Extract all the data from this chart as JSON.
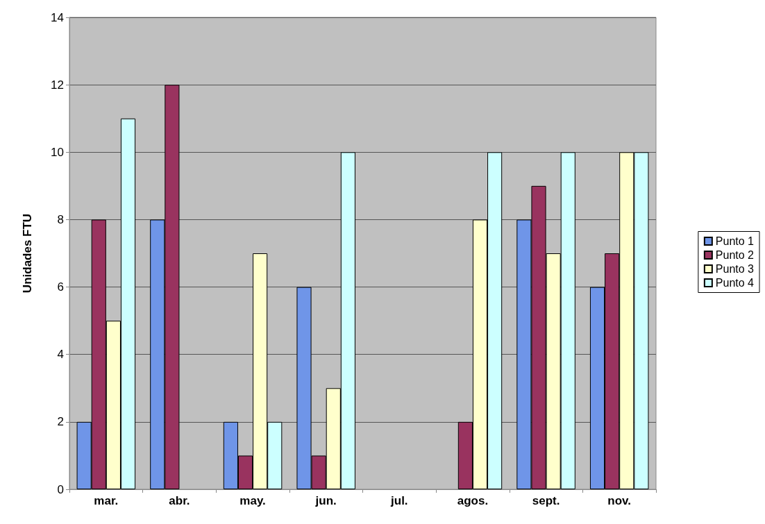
{
  "chart_data": {
    "type": "bar",
    "ylabel": "Unidades FTU",
    "categories": [
      "mar.",
      "abr.",
      "may.",
      "jun.",
      "jul.",
      "agos.",
      "sept.",
      "nov."
    ],
    "series": [
      {
        "name": "Punto 1",
        "color": "#6f95e8",
        "values": [
          2,
          8,
          2,
          6,
          null,
          null,
          8,
          6
        ]
      },
      {
        "name": "Punto 2",
        "color": "#99335f",
        "values": [
          8,
          12,
          1,
          1,
          null,
          2,
          9,
          7
        ]
      },
      {
        "name": "Punto 3",
        "color": "#ffffcc",
        "values": [
          5,
          null,
          7,
          3,
          null,
          8,
          7,
          10
        ]
      },
      {
        "name": "Punto 4",
        "color": "#ccffff",
        "values": [
          11,
          null,
          2,
          10,
          null,
          10,
          10,
          10
        ]
      }
    ],
    "ylim": [
      0,
      14
    ],
    "yticks": [
      0,
      2,
      4,
      6,
      8,
      10,
      12,
      14
    ],
    "grid": "y",
    "legend": "right"
  }
}
